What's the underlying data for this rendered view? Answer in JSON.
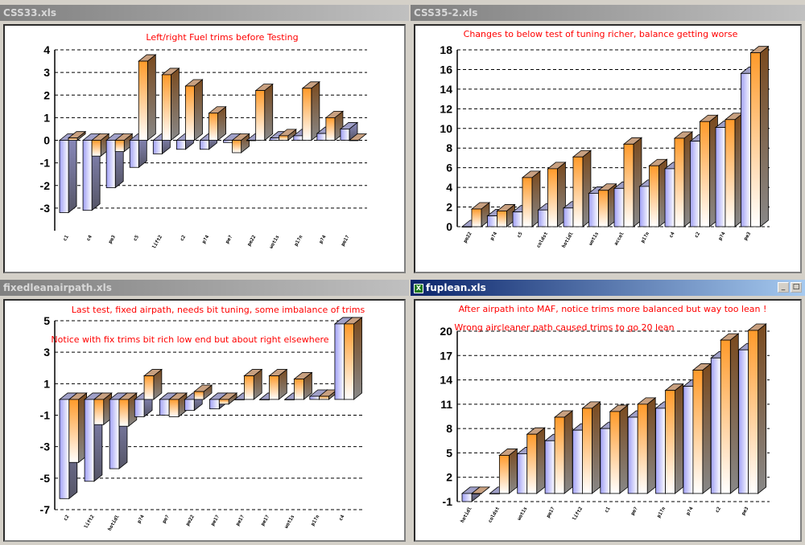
{
  "windows": [
    {
      "title": "CSS33.xls",
      "active": false
    },
    {
      "title": "CSS35-2.xls",
      "active": false
    },
    {
      "title": "fixedleanairpath.xls",
      "active": false
    },
    {
      "title": "fuplean.xls",
      "active": true,
      "icon": "excel-icon",
      "buttons": [
        "minimize",
        "maximize"
      ]
    }
  ],
  "chart_data": [
    {
      "type": "bar",
      "title": "Left/right Fuel trims before Testing",
      "annotations": [],
      "categories": [
        "c1",
        "c4",
        "pe3",
        "c5",
        "lift2",
        "c2",
        "p?4",
        "pe?",
        "pe22",
        "wot1s",
        "p1?n",
        "p?4",
        "pe1?"
      ],
      "series": [
        {
          "name": "left",
          "values": [
            -3.2,
            -3.1,
            -2.1,
            -1.2,
            -0.6,
            -0.4,
            -0.4,
            -0.1,
            0,
            0.1,
            0.2,
            0.3,
            0.5
          ]
        },
        {
          "name": "right",
          "values": [
            0.1,
            -0.7,
            -0.5,
            3.5,
            2.9,
            2.4,
            1.2,
            -0.55,
            2.2,
            0.2,
            2.3,
            1.0,
            0
          ]
        }
      ],
      "ylim": [
        -4,
        4
      ],
      "yticks": [
        -3,
        -2,
        -1,
        0,
        1,
        2,
        3,
        4
      ],
      "xlabel": "",
      "ylabel": "",
      "grid": true,
      "legend": "none"
    },
    {
      "type": "bar",
      "title": "Changes to below test of tuning richer, balance getting worse",
      "annotations": [],
      "categories": [
        "pe22",
        "p?4",
        "c5",
        "coldst",
        "hotidl",
        "wot1s",
        "accel",
        "p1?n",
        "c4",
        "c2",
        "p?4",
        "pe3"
      ],
      "series": [
        {
          "name": "left",
          "values": [
            0,
            1.1,
            1.5,
            1.7,
            1.9,
            3.4,
            3.9,
            4.1,
            5.9,
            8.7,
            10.1,
            15.6
          ]
        },
        {
          "name": "right",
          "values": [
            1.8,
            1.6,
            5.0,
            5.9,
            7.1,
            3.7,
            8.4,
            6.2,
            9.0,
            10.7,
            10.9,
            17.7
          ]
        }
      ],
      "ylim": [
        0,
        18
      ],
      "yticks": [
        0,
        2,
        4,
        6,
        8,
        10,
        12,
        14,
        16,
        18
      ],
      "xlabel": "",
      "ylabel": "",
      "grid": true,
      "legend": "none"
    },
    {
      "type": "bar",
      "title": "Last test, fixed airpath, needs bit tuning, some imbalance of trims",
      "annotations": [
        "Notice with fix trims bit rich low end but about right elsewhere"
      ],
      "categories": [
        "c2",
        "lift2",
        "hotidl",
        "p?4",
        "pe?",
        "pe22",
        "pe1?",
        "pe1?",
        "pe1?",
        "wot1s",
        "p1?n",
        "c4"
      ],
      "series": [
        {
          "name": "left",
          "values": [
            -6.3,
            -5.2,
            -4.4,
            -1.1,
            -1.0,
            -0.7,
            -0.6,
            0,
            0,
            0,
            0.2,
            4.8
          ]
        },
        {
          "name": "right",
          "values": [
            -4.0,
            -1.6,
            -1.7,
            1.5,
            -1.1,
            0.5,
            -0.3,
            1.5,
            1.5,
            1.3,
            0.2,
            4.8
          ]
        }
      ],
      "ylim": [
        -7,
        5
      ],
      "yticks": [
        -7,
        -5,
        -3,
        -1,
        1,
        3,
        5
      ],
      "xlabel": "",
      "ylabel": "",
      "grid": true,
      "legend": "none"
    },
    {
      "type": "bar",
      "title": "After airpath into MAF, notice trims more balanced but way too lean !",
      "annotations": [
        "Wrong aircleaner path caused trims to go 20 lean"
      ],
      "categories": [
        "hotidl",
        "coldst",
        "wot1s",
        "pe1?",
        "lift2",
        "c1",
        "pe?",
        "p1?n",
        "p?4",
        "c2",
        "pe3"
      ],
      "series": [
        {
          "name": "left",
          "values": [
            -1,
            0,
            4.9,
            6.5,
            7.8,
            8.0,
            9.4,
            10.5,
            13.2,
            16.7,
            17.7
          ]
        },
        {
          "name": "right",
          "values": [
            0,
            4.7,
            7.3,
            9.4,
            10.5,
            10.1,
            11.0,
            12.7,
            15.2,
            18.9,
            20.1
          ]
        }
      ],
      "ylim": [
        -1,
        20
      ],
      "yticks": [
        -1,
        2,
        5,
        8,
        11,
        14,
        17,
        20
      ],
      "xlabel": "",
      "ylabel": "",
      "grid": true,
      "legend": "none"
    }
  ]
}
